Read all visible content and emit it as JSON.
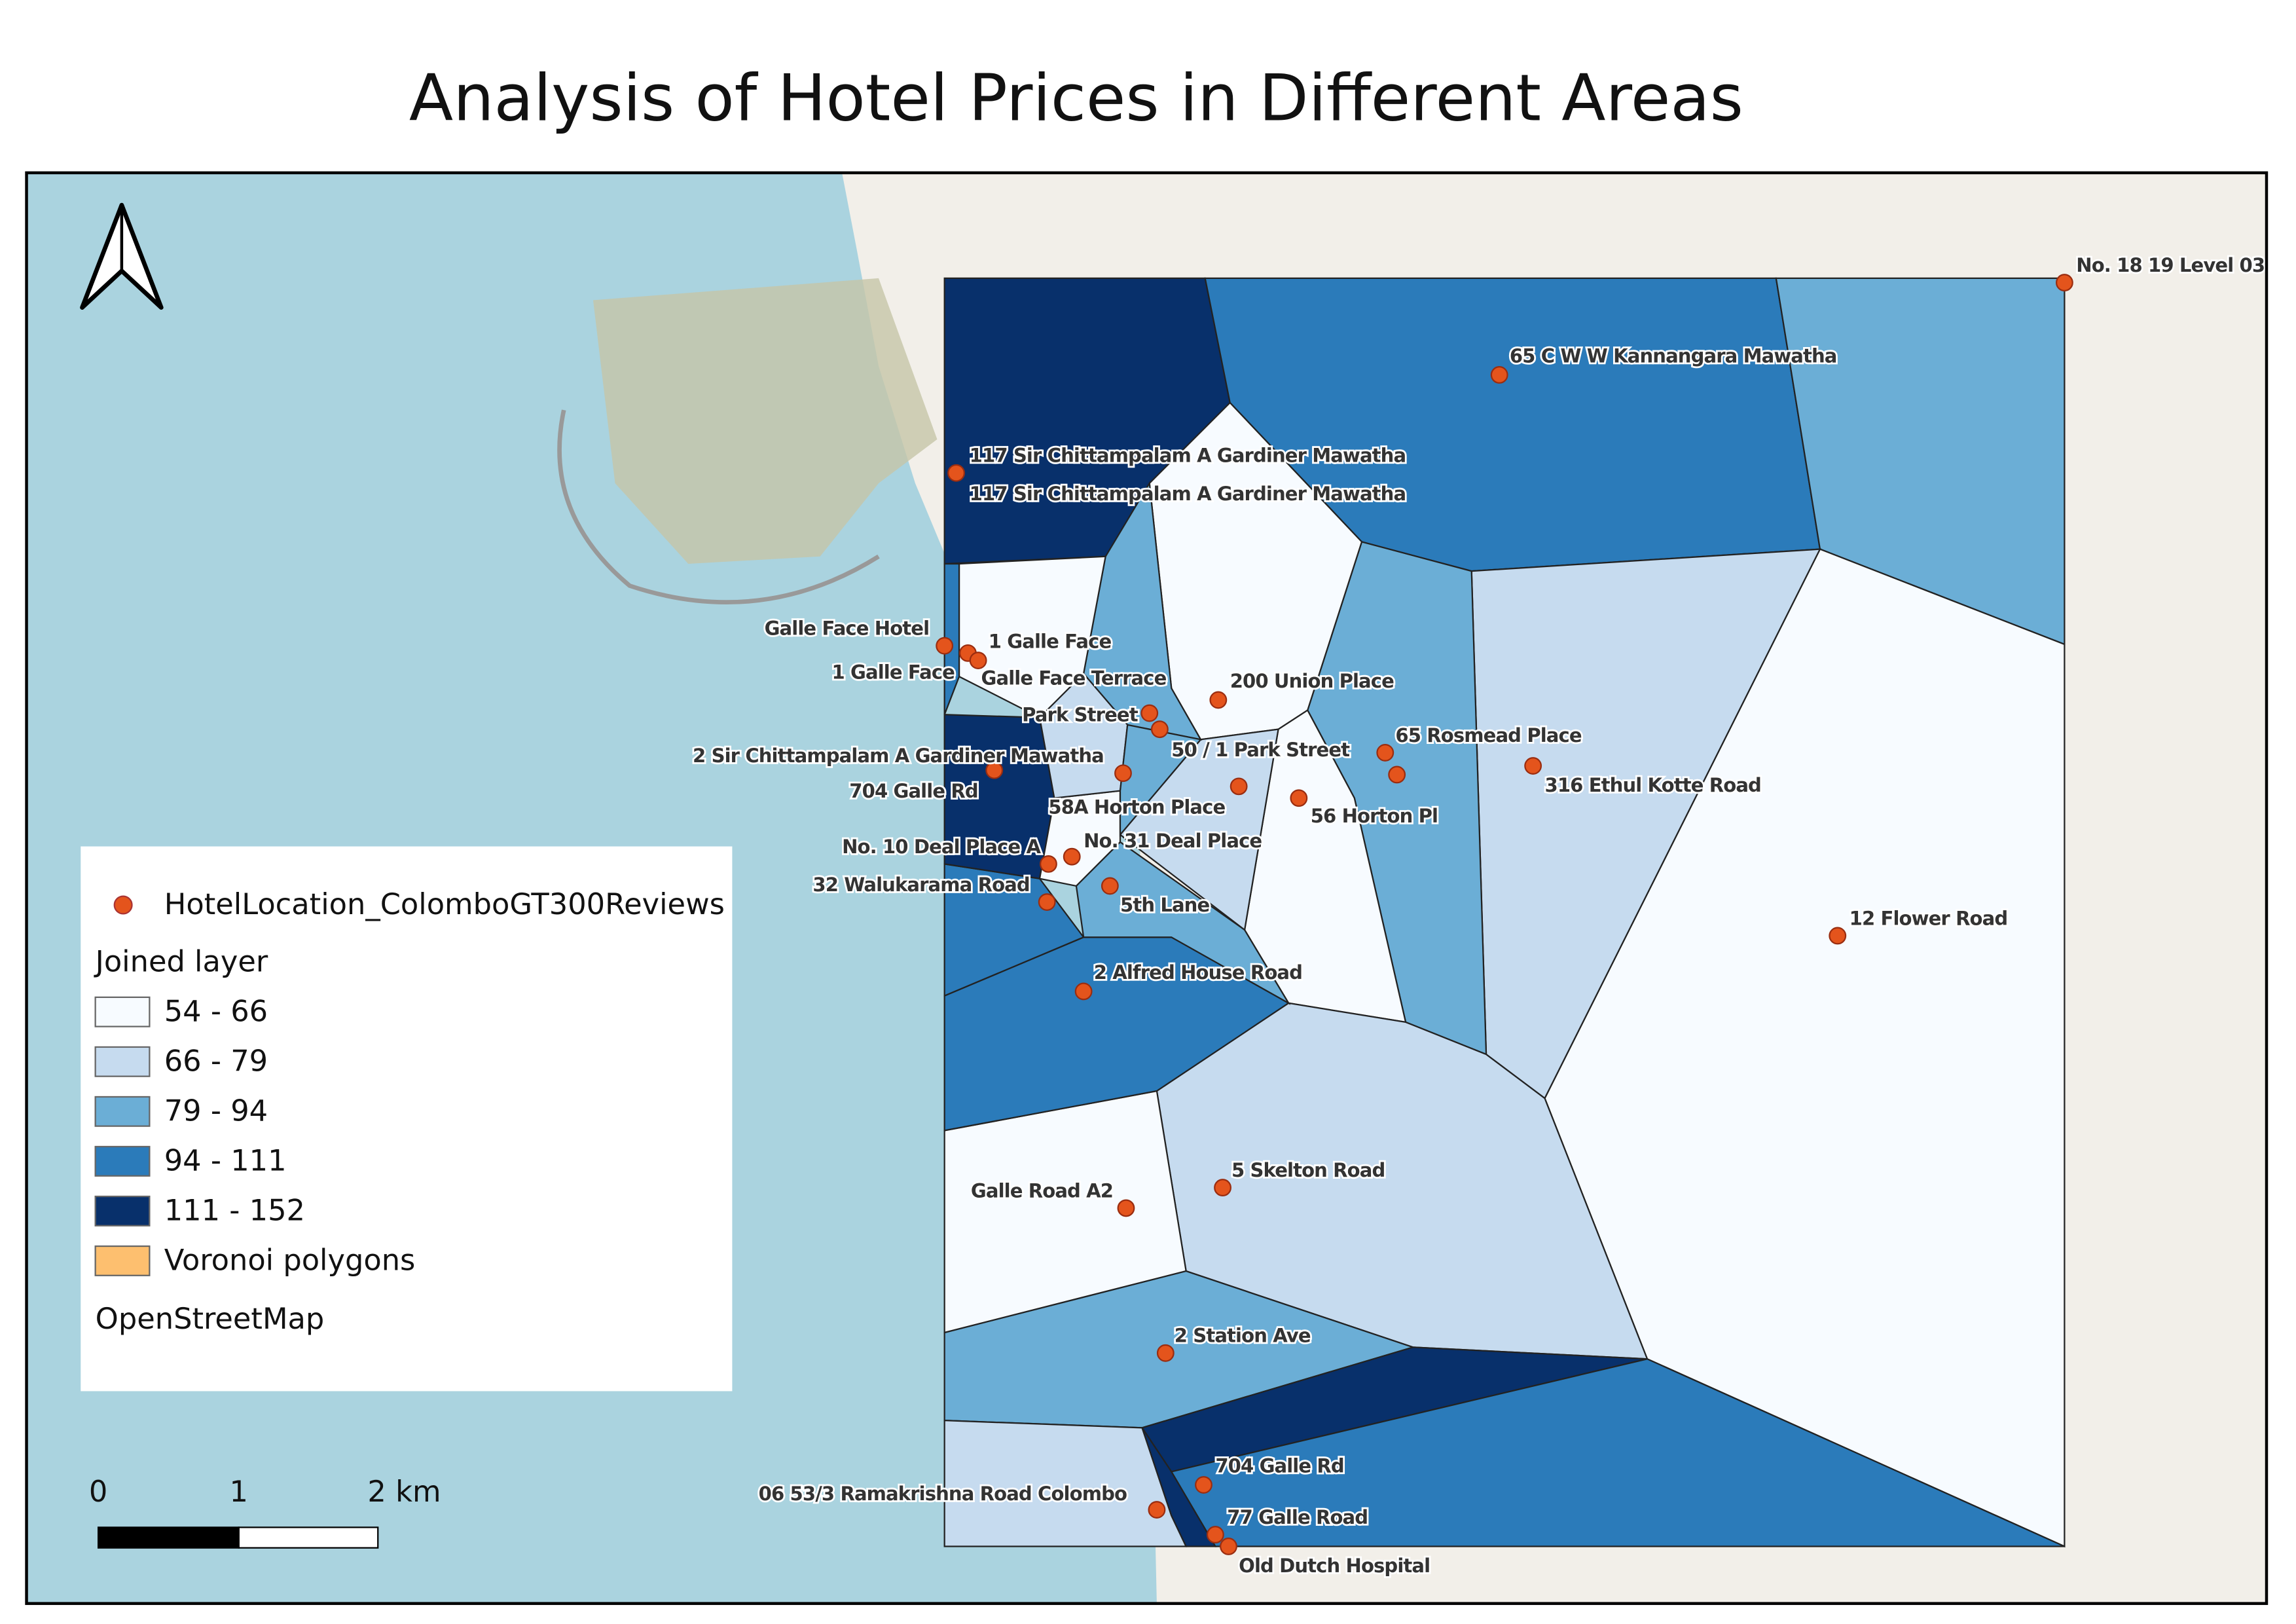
{
  "title": "Analysis of Hotel Prices in Different Areas",
  "hotel_labels": [
    "No. 18 19 Level 03",
    "65 C W W Kannangara Mawatha",
    "117 Sir Chittampalam A Gardiner Mawatha",
    "117 Sir Chittampalam A Gardiner Mawatha",
    "Galle Face Hotel",
    "1 Galle Face",
    "1 Galle Face",
    "Galle Face Terrace",
    "200 Union Place",
    "Park Street",
    "65 Rosmead Place",
    "50 / 1 Park Street",
    "2 Sir Chittampalam A Gardiner Mawatha",
    "316 Ethul Kotte Road",
    "704 Galle Rd",
    "58A Horton Place",
    "56 Horton Pl",
    "No. 10 Deal Place A",
    "No. 31 Deal Place",
    "32 Walukarama Road",
    "5th Lane",
    "12 Flower Road",
    "2 Alfred House Road",
    "5 Skelton Road",
    "Galle Road A2",
    "2 Station Ave",
    "704 Galle Rd",
    "06 53/3 Ramakrishna Road Colombo",
    "77 Galle Road",
    "Old Dutch Hospital"
  ],
  "legend": {
    "point_layer": "HotelLocation_ColomboGT300Reviews",
    "joined_layer": "Joined layer",
    "classes": [
      "54 - 66",
      "66 - 79",
      "79 - 94",
      "94 - 111",
      "111 - 152"
    ],
    "voronoi": "Voronoi polygons",
    "basemap": "OpenStreetMap"
  },
  "scale_bar": [
    "0",
    "1",
    "2 km"
  ]
}
